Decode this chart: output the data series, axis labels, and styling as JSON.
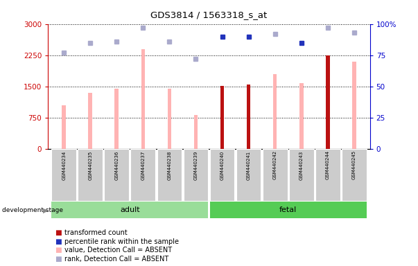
{
  "title": "GDS3814 / 1563318_s_at",
  "samples": [
    "GSM440234",
    "GSM440235",
    "GSM440236",
    "GSM440237",
    "GSM440238",
    "GSM440239",
    "GSM440240",
    "GSM440241",
    "GSM440242",
    "GSM440243",
    "GSM440244",
    "GSM440245"
  ],
  "bar_values": [
    1050,
    1350,
    1450,
    2400,
    1450,
    820,
    1520,
    1550,
    1800,
    1580,
    2250,
    2100
  ],
  "bar_colors": [
    "#ffb3b3",
    "#ffb3b3",
    "#ffb3b3",
    "#ffb3b3",
    "#ffb3b3",
    "#ffb3b3",
    "#bb1111",
    "#bb1111",
    "#ffb3b3",
    "#ffb3b3",
    "#bb1111",
    "#ffb3b3"
  ],
  "rank_values": [
    77,
    85,
    86,
    97,
    86,
    72,
    90,
    90,
    92,
    85,
    97,
    93
  ],
  "rank_colors": [
    "#aaaacc",
    "#aaaacc",
    "#aaaacc",
    "#aaaacc",
    "#aaaacc",
    "#aaaacc",
    "#2233bb",
    "#2233bb",
    "#aaaacc",
    "#2233bb",
    "#aaaacc",
    "#aaaacc"
  ],
  "group_data": [
    {
      "label": "adult",
      "start": 0,
      "end": 5,
      "color": "#99dd99"
    },
    {
      "label": "fetal",
      "start": 6,
      "end": 11,
      "color": "#55cc55"
    }
  ],
  "left_yticks": [
    0,
    750,
    1500,
    2250,
    3000
  ],
  "right_yticks": [
    0,
    25,
    50,
    75,
    100
  ],
  "left_ylim": [
    0,
    3000
  ],
  "right_ylim": [
    0,
    100
  ],
  "left_tick_color": "#cc0000",
  "right_tick_color": "#0000cc",
  "bar_width": 0.15,
  "legend_items": [
    {
      "label": "transformed count",
      "color": "#bb1111"
    },
    {
      "label": "percentile rank within the sample",
      "color": "#2233bb"
    },
    {
      "label": "value, Detection Call = ABSENT",
      "color": "#ffb3b3"
    },
    {
      "label": "rank, Detection Call = ABSENT",
      "color": "#aaaacc"
    }
  ]
}
